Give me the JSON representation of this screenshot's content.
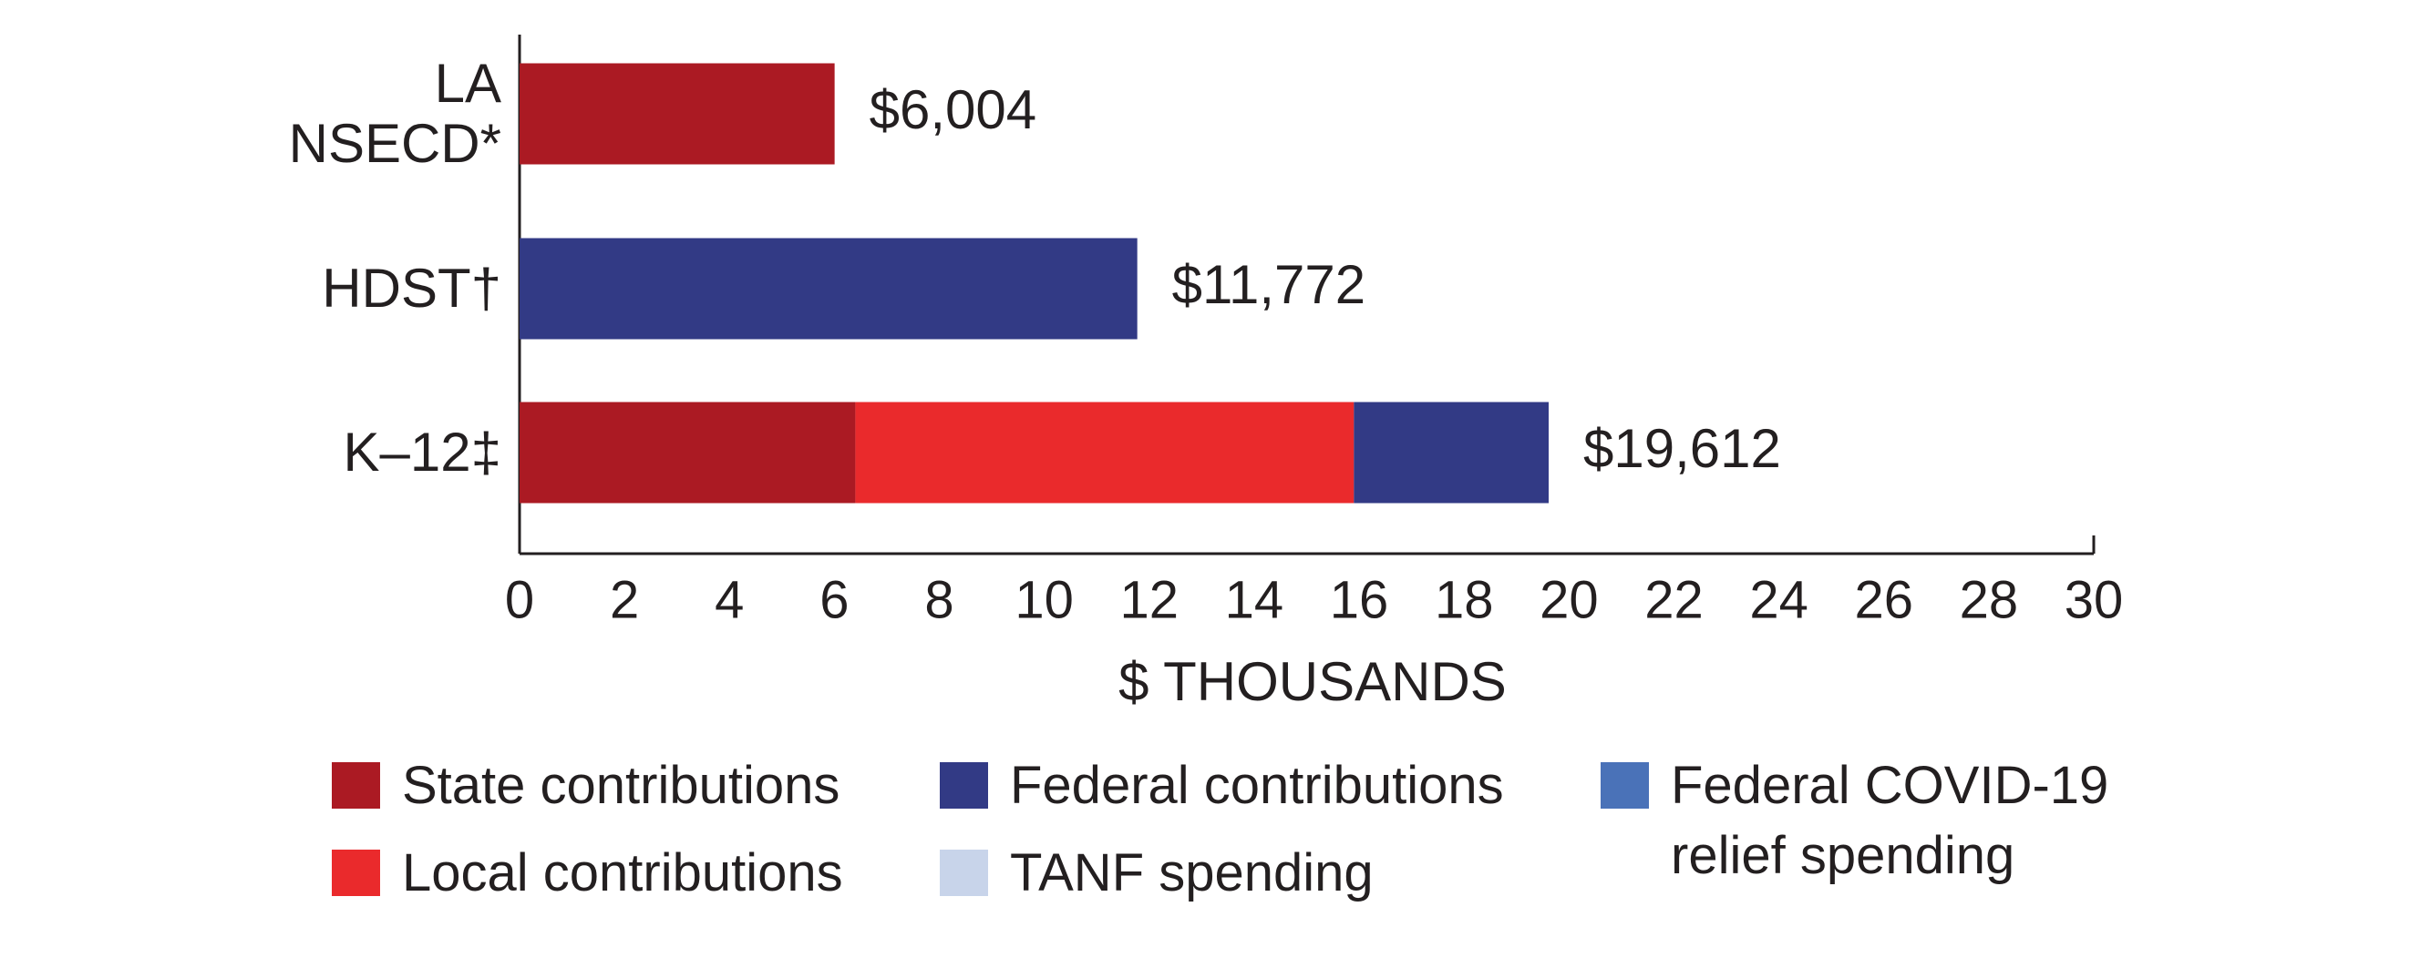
{
  "chart_data": {
    "type": "stacked-bar-horizontal",
    "categories": [
      "LA NSECD*",
      "HDST†",
      "K–12‡"
    ],
    "series": [
      {
        "name": "State contributions",
        "color": "#ab1a23",
        "values": [
          6.004,
          null,
          6.4
        ]
      },
      {
        "name": "Local contributions",
        "color": "#ea2a2c",
        "values": [
          null,
          null,
          9.5
        ]
      },
      {
        "name": "Federal contributions",
        "color": "#323a85",
        "values": [
          null,
          11.772,
          3.712
        ]
      },
      {
        "name": "TANF spending",
        "color": "#c8d4ea",
        "values": [
          null,
          null,
          null
        ]
      },
      {
        "name": "Federal COVID-19 relief spending",
        "color": "#4a72b8",
        "values": [
          null,
          null,
          null
        ]
      }
    ],
    "totals": {
      "values": [
        6.004,
        11.772,
        19.612
      ],
      "value_labels": [
        "$6,004",
        "$11,772",
        "$19,612"
      ]
    },
    "x_label": "$ THOUSANDS",
    "xlim": [
      0,
      30
    ],
    "xticks": [
      0,
      2,
      4,
      6,
      8,
      10,
      12,
      14,
      16,
      18,
      20,
      22,
      24,
      26,
      28,
      30
    ],
    "grid": false
  }
}
